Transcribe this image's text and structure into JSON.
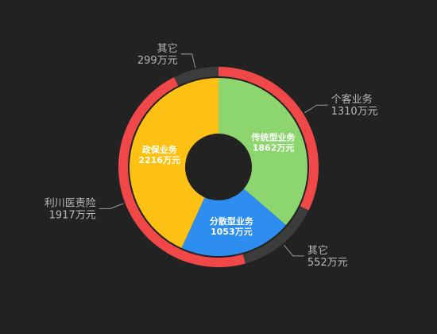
{
  "chart_data": {
    "type": "pie",
    "variant": "nested-donut",
    "inner_ring": [
      {
        "name": "传统型业务",
        "value": 1862,
        "value_label": "1862万元",
        "color": "#8dd56e"
      },
      {
        "name": "分散型业务",
        "value": 1053,
        "value_label": "1053万元",
        "color": "#2d8ef0"
      },
      {
        "name": "政保业务",
        "value": 2216,
        "value_label": "2216万元",
        "color": "#fcc113"
      }
    ],
    "outer_ring": [
      {
        "name": "个客业务",
        "value": 1310,
        "value_label": "1310万元",
        "color": "#f04848"
      },
      {
        "name": "其它",
        "value": 552,
        "value_label": "552万元",
        "color": "#3c3c3c"
      },
      {
        "name": "利川医责险",
        "value": 1917,
        "value_label": "1917万元",
        "color": "#f04848"
      },
      {
        "name": "其它",
        "value": 299,
        "value_label": "299万元",
        "color": "#3c3c3c"
      }
    ],
    "start_angle_deg": 90,
    "direction": "clockwise",
    "background": "#222222",
    "label_color": "#b8b8b8",
    "leader_color": "#9a9a9a",
    "legend": "none"
  }
}
